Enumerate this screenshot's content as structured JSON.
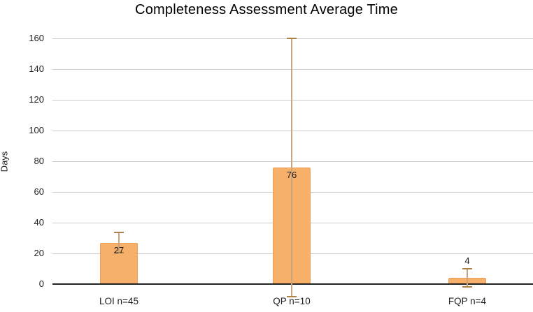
{
  "chart_data": {
    "type": "bar",
    "title": "Completeness Assessment Average Time",
    "ylabel": "Days",
    "xlabel": "",
    "categories": [
      "LOI n=45",
      "QP n=10",
      "FQP n=4"
    ],
    "values": [
      27,
      76,
      4
    ],
    "data_labels": [
      "27",
      "76",
      "4"
    ],
    "error_bars": [
      {
        "low": 20.5,
        "high": 33.5
      },
      {
        "low": -8,
        "high": 160
      },
      {
        "low": -2,
        "high": 10
      }
    ],
    "yticks": [
      0,
      20,
      40,
      60,
      80,
      100,
      120,
      140,
      160
    ],
    "ylim": [
      0,
      160
    ],
    "grid": true,
    "legend": "none",
    "colors": {
      "bar_fill": "#F6B06A",
      "bar_border": "#EDA055",
      "error_line": "#C9A57A",
      "error_cap": "#AD8048",
      "gridline": "#CCCCCC",
      "zero_axis": "#222222",
      "title_text": "#000000",
      "tick_text": "#222222",
      "label_text": "#1A1A1A"
    }
  }
}
